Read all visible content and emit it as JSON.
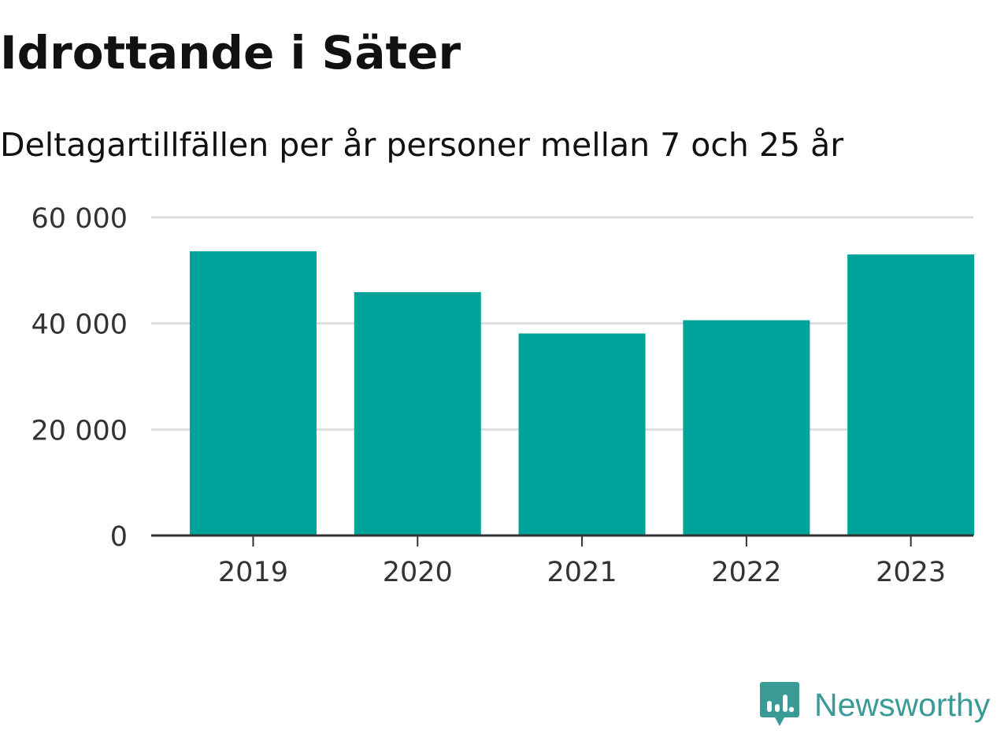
{
  "title": "Idrottande i Säter",
  "subtitle": "Deltagartillfällen per år personer mellan 7 och 25 år",
  "brand": {
    "name": "Newsworthy",
    "icon": "newsworthy-logo-icon",
    "color": "#3a9b96"
  },
  "chart_data": {
    "type": "bar",
    "title": "Idrottande i Säter",
    "subtitle": "Deltagartillfällen per år personer mellan 7 och 25 år",
    "categories": [
      "2019",
      "2020",
      "2021",
      "2022",
      "2023"
    ],
    "values": [
      53600,
      45900,
      38100,
      40600,
      53000
    ],
    "xlabel": "",
    "ylabel": "",
    "ylim": [
      0,
      60000
    ],
    "yticks": [
      0,
      20000,
      40000,
      60000
    ],
    "ytick_labels": [
      "0",
      "20 000",
      "40 000",
      "60 000"
    ],
    "grid": true,
    "legend": "none",
    "bar_color": "#00a39a",
    "grid_color": "#dddddd",
    "axis_color": "#333333"
  }
}
